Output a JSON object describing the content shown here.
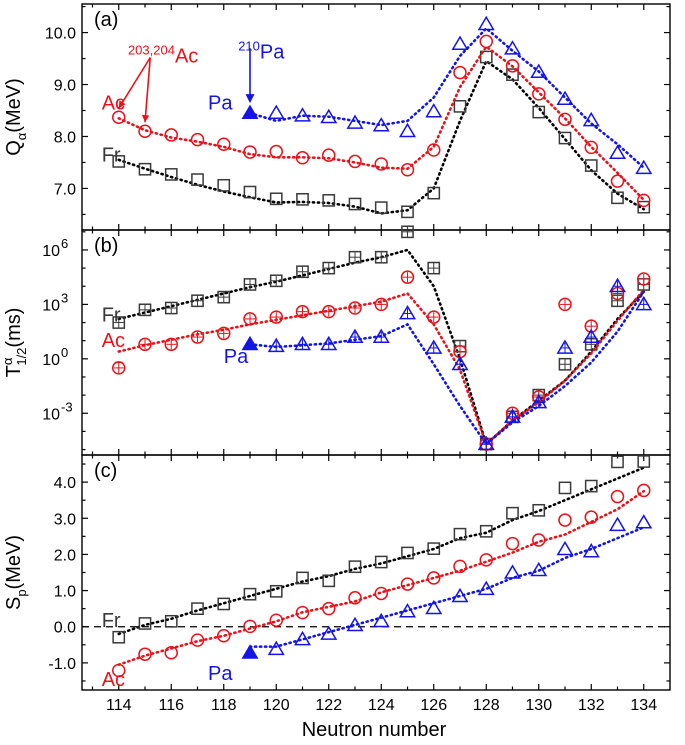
{
  "chart_data": {
    "type": "scatter",
    "xlabel": "Neutron number",
    "xlim": [
      112.6,
      135.0
    ],
    "xticks": [
      114,
      116,
      118,
      120,
      122,
      124,
      126,
      128,
      130,
      132,
      134
    ],
    "colors": {
      "Fr": "#3a3a3a",
      "Ac": "#e8121b",
      "Pa": "#1414e6",
      "frfit": "#000000"
    },
    "panels": [
      {
        "id": "a",
        "label": "(a)",
        "ylabel_main": "Q",
        "ylabel_sub": "α",
        "ylabel_tail": "(MeV)",
        "scale": "linear",
        "ylim": [
          6.2,
          10.55
        ],
        "yticks": [
          7.0,
          8.0,
          9.0,
          10.0
        ],
        "yticklabels": [
          "7.0",
          "8.0",
          "9.0",
          "10.0"
        ],
        "series": [
          {
            "name": "Fr",
            "marker": "square",
            "x": [
              114,
              115,
              116,
              117,
              118,
              119,
              120,
              121,
              122,
              123,
              124,
              125,
              126,
              127,
              128,
              129,
              130,
              131,
              132,
              133,
              134
            ],
            "y": [
              7.52,
              7.37,
              7.27,
              7.17,
              7.06,
              6.93,
              6.8,
              6.79,
              6.77,
              6.7,
              6.63,
              6.55,
              6.91,
              8.58,
              9.53,
              9.19,
              8.47,
              7.97,
              7.44,
              6.82,
              6.64
            ],
            "fit_x": [
              114,
              115,
              116,
              117,
              118,
              119,
              120,
              121,
              122,
              123,
              124,
              125,
              126,
              127,
              128,
              129,
              130,
              131,
              132,
              133,
              134
            ],
            "fit_y": [
              7.55,
              7.38,
              7.22,
              7.07,
              6.94,
              6.83,
              6.73,
              6.74,
              6.72,
              6.65,
              6.52,
              6.58,
              7.0,
              8.3,
              9.45,
              9.1,
              8.55,
              7.95,
              7.35,
              6.9,
              6.6
            ]
          },
          {
            "name": "Ac",
            "marker": "circle",
            "x": [
              114,
              115,
              116,
              117,
              118,
              119,
              120,
              121,
              122,
              123,
              124,
              125,
              126,
              127,
              128,
              129,
              130,
              131,
              132,
              133,
              134
            ],
            "y": [
              8.37,
              8.1,
              8.03,
              7.94,
              7.85,
              7.7,
              7.71,
              7.59,
              7.64,
              7.52,
              7.47,
              7.36,
              7.74,
              9.23,
              9.83,
              9.36,
              8.82,
              8.33,
              7.79,
              7.14,
              6.77
            ],
            "fit_x": [
              114,
              115,
              116,
              117,
              118,
              119,
              120,
              121,
              122,
              123,
              124,
              125,
              126,
              127,
              128,
              129,
              130,
              131,
              132,
              133,
              134
            ],
            "fit_y": [
              8.35,
              8.12,
              7.98,
              7.9,
              7.8,
              7.66,
              7.6,
              7.6,
              7.58,
              7.5,
              7.4,
              7.38,
              7.8,
              8.95,
              9.73,
              9.35,
              8.85,
              8.35,
              7.8,
              7.3,
              6.78
            ]
          },
          {
            "name": "Pa",
            "marker": "triangle",
            "filled_x": [
              119
            ],
            "filled_y": [
              8.45
            ],
            "x": [
              120,
              121,
              122,
              123,
              124,
              125,
              126,
              127,
              128,
              129,
              130,
              131,
              132,
              133,
              134
            ],
            "y": [
              8.45,
              8.4,
              8.37,
              8.26,
              8.21,
              8.1,
              8.48,
              9.78,
              10.16,
              9.69,
              9.24,
              8.72,
              8.31,
              7.68,
              7.39
            ],
            "fit_x": [
              119,
              120,
              121,
              122,
              123,
              124,
              125,
              126,
              127,
              128,
              129,
              130,
              131,
              132,
              133,
              134
            ],
            "fit_y": [
              8.45,
              8.3,
              8.4,
              8.38,
              8.3,
              8.22,
              8.3,
              8.75,
              9.55,
              10.08,
              9.65,
              9.25,
              8.75,
              8.25,
              7.85,
              7.4
            ]
          }
        ],
        "series_labels": [
          {
            "text": "Fr",
            "series": "Fr",
            "x": 113.35,
            "y": 7.65
          },
          {
            "text": "Ac",
            "series": "Ac",
            "x": 113.35,
            "y": 8.65
          },
          {
            "text": "Pa",
            "series": "Pa",
            "x": 117.4,
            "y": 8.65
          }
        ],
        "annotations": [
          {
            "sup": "203,204",
            "text": "Ac",
            "series": "Ac"
          },
          {
            "sup": "210",
            "text": "Pa",
            "series": "Pa"
          }
        ]
      },
      {
        "id": "b",
        "label": "(b)",
        "ylabel_main": "T",
        "ylabel_sup": "α",
        "ylabel_sub": "1/2",
        "ylabel_tail": "(ms)",
        "scale": "log",
        "ylim_exp": [
          -5.3,
          7.1
        ],
        "yticks_exp": [
          -3,
          0,
          3,
          6
        ],
        "yticklabels": [
          "10",
          "10",
          "10",
          "10"
        ],
        "ytickexps": [
          "-3",
          "0",
          "3",
          "6"
        ],
        "series": [
          {
            "name": "Fr",
            "marker": "square",
            "x": [
              114,
              115,
              116,
              117,
              118,
              119,
              120,
              121,
              122,
              123,
              124,
              125,
              126,
              127,
              128,
              129,
              130,
              131,
              132,
              133,
              134
            ],
            "y_exp": [
              2.0,
              2.7,
              2.8,
              3.2,
              3.4,
              4.1,
              4.3,
              4.8,
              5.0,
              5.6,
              5.6,
              7.0,
              5.0,
              0.7,
              -4.7,
              -3.2,
              -2.0,
              -0.3,
              0.8,
              3.2,
              4.1
            ],
            "fit_x": [
              114,
              115,
              116,
              117,
              118,
              119,
              120,
              121,
              122,
              123,
              124,
              125,
              126,
              127,
              128,
              129,
              130,
              131,
              132,
              133,
              134
            ],
            "fit_y_exp": [
              2.2,
              2.55,
              2.9,
              3.25,
              3.6,
              3.95,
              4.25,
              4.6,
              4.95,
              5.3,
              5.6,
              6.0,
              4.0,
              0.0,
              -4.7,
              -3.4,
              -2.3,
              -1.2,
              0.4,
              2.2,
              3.7
            ]
          },
          {
            "name": "Ac",
            "marker": "circle",
            "x": [
              114,
              115,
              116,
              117,
              118,
              119,
              120,
              121,
              122,
              123,
              124,
              125,
              126,
              127,
              128,
              129,
              130,
              131,
              132,
              133,
              134
            ],
            "y_exp": [
              -0.5,
              0.8,
              0.8,
              1.2,
              1.4,
              2.2,
              2.3,
              2.6,
              2.6,
              2.8,
              3.0,
              4.5,
              2.3,
              0.4,
              -4.7,
              -3.0,
              -2.1,
              3.0,
              1.8,
              3.6,
              4.4
            ],
            "err_down": [
              -0.2
            ],
            "fit_x": [
              114,
              115,
              116,
              117,
              118,
              119,
              120,
              121,
              122,
              123,
              124,
              125,
              126,
              127,
              128,
              129,
              130,
              131,
              132,
              133,
              134
            ],
            "fit_y_exp": [
              0.4,
              0.75,
              1.05,
              1.35,
              1.6,
              1.9,
              2.15,
              2.4,
              2.65,
              2.9,
              3.15,
              3.6,
              1.9,
              -0.6,
              -4.7,
              -3.4,
              -2.4,
              -1.2,
              0.3,
              2.1,
              3.8
            ]
          },
          {
            "name": "Pa",
            "marker": "triangle",
            "filled_x": [
              119
            ],
            "filled_y_exp": [
              0.8
            ],
            "x": [
              120,
              121,
              122,
              123,
              124,
              125,
              126,
              127,
              128,
              129,
              130,
              131,
              132,
              133,
              134
            ],
            "y_exp": [
              0.7,
              0.8,
              0.8,
              1.2,
              1.2,
              2.5,
              0.6,
              -0.3,
              -4.7,
              -3.2,
              -2.4,
              0.6,
              1.2,
              4.0,
              3.0
            ],
            "fit_x": [
              119,
              120,
              121,
              122,
              123,
              124,
              125,
              126,
              127,
              128,
              129,
              130,
              131,
              132,
              133,
              134
            ],
            "fit_y_exp": [
              0.8,
              0.65,
              0.75,
              0.85,
              1.05,
              1.25,
              1.9,
              -0.3,
              -2.6,
              -4.7,
              -3.5,
              -2.6,
              -1.5,
              -0.2,
              1.5,
              3.7
            ]
          }
        ],
        "series_labels": [
          {
            "text": "Fr",
            "series": "Fr",
            "x": 113.35,
            "y": 2.45
          },
          {
            "text": "Ac",
            "series": "Ac",
            "x": 113.35,
            "y": 1.05
          },
          {
            "text": "Pa",
            "series": "Pa",
            "x": 118.0,
            "y": 0.15
          }
        ]
      },
      {
        "id": "c",
        "label": "(c)",
        "ylabel_main": "S",
        "ylabel_sub": "p",
        "ylabel_tail": "(MeV)",
        "scale": "linear",
        "ylim": [
          -1.75,
          4.75
        ],
        "yticks": [
          -1.0,
          0.0,
          1.0,
          2.0,
          3.0,
          4.0
        ],
        "yticklabels": [
          "-1.0",
          "0.0",
          "1.0",
          "2.0",
          "3.0",
          "4.0"
        ],
        "hline": 0.0,
        "series": [
          {
            "name": "Fr",
            "marker": "square",
            "x": [
              114,
              115,
              116,
              117,
              118,
              119,
              120,
              121,
              122,
              123,
              124,
              125,
              126,
              127,
              128,
              129,
              130,
              131,
              132,
              133,
              134
            ],
            "y": [
              -0.29,
              0.09,
              0.15,
              0.5,
              0.63,
              0.9,
              0.98,
              1.35,
              1.27,
              1.66,
              1.79,
              2.04,
              2.16,
              2.56,
              2.64,
              3.14,
              3.22,
              3.84,
              3.89,
              4.56,
              4.57
            ],
            "fit_x": [
              114,
              115,
              116,
              117,
              118,
              119,
              120,
              121,
              122,
              123,
              124,
              125,
              126,
              127,
              128,
              129,
              130,
              131,
              132,
              133,
              134
            ],
            "fit_y": [
              -0.2,
              0.05,
              0.22,
              0.45,
              0.65,
              0.85,
              1.05,
              1.25,
              1.4,
              1.6,
              1.75,
              1.95,
              2.15,
              2.45,
              2.6,
              2.95,
              3.2,
              3.5,
              3.8,
              4.1,
              4.4
            ]
          },
          {
            "name": "Ac",
            "marker": "circle",
            "x": [
              114,
              115,
              116,
              117,
              118,
              119,
              120,
              121,
              122,
              123,
              124,
              125,
              126,
              127,
              128,
              129,
              130,
              131,
              132,
              133,
              134
            ],
            "y": [
              -1.21,
              -0.76,
              -0.72,
              -0.37,
              -0.25,
              0.01,
              0.18,
              0.39,
              0.5,
              0.8,
              0.92,
              1.18,
              1.35,
              1.67,
              1.85,
              2.3,
              2.4,
              2.95,
              3.03,
              3.6,
              3.77
            ],
            "fit_x": [
              114,
              115,
              116,
              117,
              118,
              119,
              120,
              121,
              122,
              123,
              124,
              125,
              126,
              127,
              128,
              129,
              130,
              131,
              132,
              133,
              134
            ],
            "fit_y": [
              -1.05,
              -0.8,
              -0.6,
              -0.4,
              -0.25,
              -0.05,
              0.15,
              0.4,
              0.55,
              0.7,
              0.95,
              1.15,
              1.35,
              1.55,
              1.8,
              2.05,
              2.35,
              2.55,
              2.9,
              3.25,
              3.75
            ]
          },
          {
            "name": "Pa",
            "marker": "triangle",
            "filled_x": [
              119
            ],
            "filled_y": [
              -0.72
            ],
            "x": [
              120,
              121,
              122,
              123,
              124,
              125,
              126,
              127,
              128,
              129,
              130,
              131,
              132,
              133,
              134
            ],
            "y": [
              -0.62,
              -0.35,
              -0.2,
              0.04,
              0.15,
              0.42,
              0.51,
              0.84,
              1.04,
              1.49,
              1.56,
              2.14,
              2.08,
              2.81,
              2.88
            ],
            "fit_x": [
              119,
              120,
              121,
              122,
              123,
              124,
              125,
              126,
              127,
              128,
              129,
              130,
              131,
              132,
              133,
              134
            ],
            "fit_y": [
              -0.55,
              -0.55,
              -0.35,
              -0.15,
              0.05,
              0.25,
              0.45,
              0.65,
              0.85,
              1.05,
              1.35,
              1.55,
              1.9,
              2.15,
              2.45,
              2.75
            ]
          }
        ],
        "series_labels": [
          {
            "text": "Fr",
            "series": "Fr",
            "x": 113.35,
            "y": 0.18
          },
          {
            "text": "Ac",
            "series": "Ac",
            "x": 113.35,
            "y": -1.45
          },
          {
            "text": "Pa",
            "series": "Pa",
            "x": 117.4,
            "y": -1.28
          }
        ]
      }
    ]
  }
}
